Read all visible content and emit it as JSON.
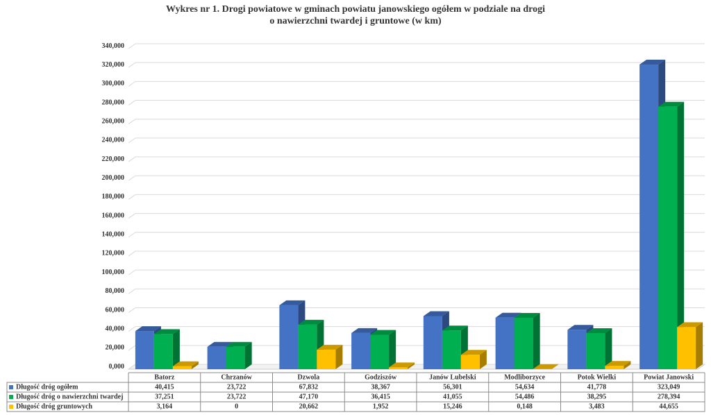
{
  "chart_data": {
    "type": "bar3d",
    "title": [
      "Wykres nr 1. Drogi powiatowe w gminach powiatu janowskiego ogółem w podziale na drogi",
      "o nawierzchni twardej i gruntowe (w km)"
    ],
    "categories": [
      "Batorz",
      "Chrzanów",
      "Dzwola",
      "Godziszów",
      "Janów Lubelski",
      "Modliborzyce",
      "Potok Wielki",
      "Powiat Janowski"
    ],
    "series": [
      {
        "name": "Długość dróg ogółem",
        "color": "#4472c4",
        "values": [
          40.415,
          23.722,
          67.832,
          38.367,
          56.301,
          54.634,
          41.778,
          323.049
        ],
        "value_labels": [
          "40,415",
          "23,722",
          "67,832",
          "38,367",
          "56,301",
          "54,634",
          "41,778",
          "323,049"
        ]
      },
      {
        "name": "Długość dróg o nawierzchni twardej",
        "color": "#00b050",
        "values": [
          37.251,
          23.722,
          47.17,
          36.415,
          41.055,
          54.486,
          38.295,
          278.394
        ],
        "value_labels": [
          "37,251",
          "23,722",
          "47,170",
          "36,415",
          "41,055",
          "54,486",
          "38,295",
          "278,394"
        ]
      },
      {
        "name": "Długość dróg gruntowych",
        "color": "#ffc000",
        "values": [
          3.164,
          0,
          20.662,
          1.952,
          15.246,
          0.148,
          3.483,
          44.655
        ],
        "value_labels": [
          "3,164",
          "0",
          "20,662",
          "1,952",
          "15,246",
          "0,148",
          "3,483",
          "44,655"
        ]
      }
    ],
    "ylim": [
      0,
      340
    ],
    "yticks": [
      {
        "value": 0,
        "label": "0,000"
      },
      {
        "value": 20,
        "label": "20,000"
      },
      {
        "value": 40,
        "label": "40,000"
      },
      {
        "value": 60,
        "label": "60,000"
      },
      {
        "value": 80,
        "label": "80,000"
      },
      {
        "value": 100,
        "label": "100,000"
      },
      {
        "value": 120,
        "label": "120,000"
      },
      {
        "value": 140,
        "label": "140,000"
      },
      {
        "value": 160,
        "label": "160,000"
      },
      {
        "value": 180,
        "label": "180,000"
      },
      {
        "value": 200,
        "label": "200,000"
      },
      {
        "value": 220,
        "label": "220,000"
      },
      {
        "value": 240,
        "label": "240,000"
      },
      {
        "value": 260,
        "label": "260,000"
      },
      {
        "value": 280,
        "label": "280,000"
      },
      {
        "value": 300,
        "label": "300,000"
      },
      {
        "value": 320,
        "label": "320,000"
      },
      {
        "value": 340,
        "label": "340,000"
      }
    ],
    "grid": true
  }
}
